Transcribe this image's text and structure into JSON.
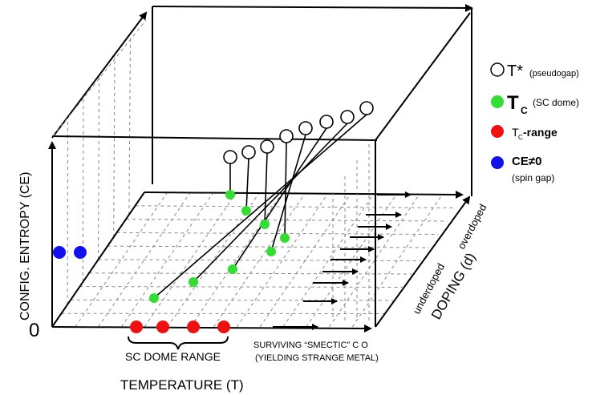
{
  "axes": {
    "entropy_label": "CONFIG. ENTROPY (CE)",
    "temperature_label": "TEMPERATURE (T)",
    "doping_label": "DOPING (d)",
    "origin_label": "0",
    "underdoped_label": "underdoped",
    "overdoped_label": "overdoped"
  },
  "annotations": {
    "sc_dome_range": "SC DOME RANGE",
    "surviving_line1": "SURVIVING “SMECTIC” C O",
    "surviving_line2": "(YIELDING STRANGE METAL)"
  },
  "legend": {
    "t_star_main": "T*",
    "t_star_sub": "(pseudogap)",
    "tc_main": "T",
    "tc_subscript": "C",
    "tc_sub": "(SC dome)",
    "tc_range_main": "T",
    "tc_range_subscript": "C",
    "tc_range_sub": "-range",
    "ce_main": "CE≠0",
    "ce_sub": "(spin gap)"
  },
  "colors": {
    "t_star_fill": "#ffffff",
    "tc_fill": "#33dd33",
    "tc_range_fill": "#ee1111",
    "ce_fill": "#1111ee",
    "line": "#000000"
  }
}
